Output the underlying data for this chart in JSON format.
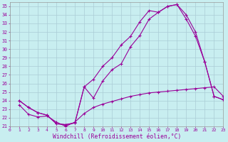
{
  "background_color": "#c8eef0",
  "grid_color": "#aaccd6",
  "line_color": "#990099",
  "xlabel": "Windchill (Refroidissement éolien,°C)",
  "xlim": [
    0,
    23
  ],
  "ylim": [
    21,
    35.5
  ],
  "xticks": [
    0,
    1,
    2,
    3,
    4,
    5,
    6,
    7,
    8,
    9,
    10,
    11,
    12,
    13,
    14,
    15,
    16,
    17,
    18,
    19,
    20,
    21,
    22,
    23
  ],
  "yticks": [
    21,
    22,
    23,
    24,
    25,
    26,
    27,
    28,
    29,
    30,
    31,
    32,
    33,
    34,
    35
  ],
  "line1_x": [
    1,
    2,
    3,
    4,
    5,
    6,
    7,
    8,
    9,
    10,
    11,
    12,
    13,
    14,
    15,
    16,
    17,
    18,
    19,
    20,
    21,
    22,
    23
  ],
  "line1_y": [
    24.0,
    23.2,
    22.6,
    22.3,
    21.3,
    21.2,
    21.4,
    25.6,
    24.3,
    26.3,
    27.6,
    28.3,
    30.3,
    31.6,
    33.5,
    34.3,
    35.0,
    35.2,
    33.5,
    31.5,
    28.5,
    24.5,
    24.1
  ],
  "line2_x": [
    1,
    2,
    3,
    4,
    5,
    6,
    7,
    8,
    9,
    10,
    11,
    12,
    13,
    14,
    15,
    16,
    17,
    18,
    19,
    20,
    21,
    22,
    23
  ],
  "line2_y": [
    24.0,
    23.2,
    22.6,
    22.3,
    21.3,
    21.2,
    21.4,
    25.6,
    26.5,
    28.0,
    29.0,
    30.5,
    31.5,
    33.2,
    34.5,
    34.3,
    35.0,
    35.2,
    34.0,
    32.0,
    28.5,
    24.5,
    24.1
  ],
  "line3_x": [
    1,
    2,
    3,
    4,
    5,
    6,
    7,
    8,
    9,
    10,
    11,
    12,
    13,
    14,
    15,
    16,
    17,
    18,
    19,
    20,
    21,
    22,
    23
  ],
  "line3_y": [
    23.5,
    22.4,
    22.1,
    22.2,
    21.5,
    21.0,
    21.5,
    22.5,
    23.2,
    23.6,
    23.9,
    24.2,
    24.5,
    24.7,
    24.9,
    25.0,
    25.1,
    25.2,
    25.3,
    25.4,
    25.5,
    25.6,
    24.5
  ]
}
